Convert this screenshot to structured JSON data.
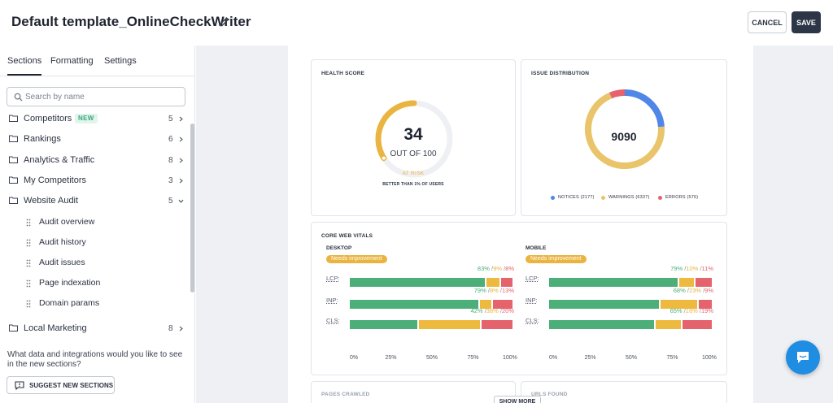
{
  "header": {
    "title": "Default template_OnlineCheckWriter",
    "cancel_label": "CANCEL",
    "save_label": "SAVE"
  },
  "sidebar": {
    "tabs": [
      "Sections",
      "Formatting",
      "Settings"
    ],
    "search_placeholder": "Search by name",
    "items": [
      {
        "label": "Competitors",
        "badge": "NEW",
        "count": "5"
      },
      {
        "label": "Rankings",
        "count": "6"
      },
      {
        "label": "Analytics & Traffic",
        "count": "8"
      },
      {
        "label": "My Competitors",
        "count": "3"
      },
      {
        "label": "Website Audit",
        "count": "5"
      },
      {
        "label": "Local Marketing",
        "count": "8"
      }
    ],
    "subitems": [
      "Audit overview",
      "Audit history",
      "Audit issues",
      "Page indexation",
      "Domain params"
    ],
    "suggest_text": "What data and integrations would you like to see in the new sections?",
    "suggest_button": "SUGGEST NEW SECTIONS"
  },
  "report": {
    "health": {
      "title": "HEALTH SCORE",
      "score": "34",
      "out_of": "OUT OF 100",
      "status": "AT RISK",
      "note": "BETTER THAN 1% OF USERS",
      "score_value": 34,
      "color": "#e9b43f"
    },
    "issues": {
      "title": "ISSUE DISTRIBUTION",
      "total": "9090",
      "legend": [
        "NOTICES (2177)",
        "WARNINGS (6337)",
        "ERRORS (576)"
      ],
      "values": [
        2177,
        6337,
        576
      ],
      "colors": [
        "#4f86e8",
        "#e9c46a",
        "#e5636c"
      ]
    },
    "cwv": {
      "title": "CORE WEB VITALS",
      "desktop": {
        "label": "DESKTOP",
        "status": "Needs improvement",
        "rows": [
          {
            "name": "LCP:",
            "good": "83%",
            "mid": "9%",
            "bad": "8%",
            "values": [
              83,
              9,
              8
            ]
          },
          {
            "name": "INP:",
            "good": "79%",
            "mid": "8%",
            "bad": "13%",
            "values": [
              79,
              8,
              13
            ]
          },
          {
            "name": "CLS:",
            "good": "42%",
            "mid": "38%",
            "bad": "20%",
            "values": [
              42,
              38,
              20
            ]
          }
        ]
      },
      "mobile": {
        "label": "MOBILE",
        "status": "Needs improvement",
        "rows": [
          {
            "name": "LCP:",
            "good": "79%",
            "mid": "10%",
            "bad": "11%",
            "values": [
              79,
              10,
              11
            ]
          },
          {
            "name": "INP:",
            "good": "68%",
            "mid": "23%",
            "bad": "9%",
            "values": [
              68,
              23,
              9
            ]
          },
          {
            "name": "CLS:",
            "good": "65%",
            "mid": "16%",
            "bad": "19%",
            "values": [
              65,
              16,
              19
            ]
          }
        ]
      },
      "axis": [
        "0%",
        "25%",
        "50%",
        "75%",
        "100%"
      ],
      "colors": {
        "good": "#4cae78",
        "mid": "#eeb93f",
        "bad": "#e5636c"
      }
    },
    "bottom": {
      "pages_crawled": "PAGES CRAWLED",
      "urls_found": "URLS FOUND",
      "show_more": "SHOW MORE"
    }
  }
}
